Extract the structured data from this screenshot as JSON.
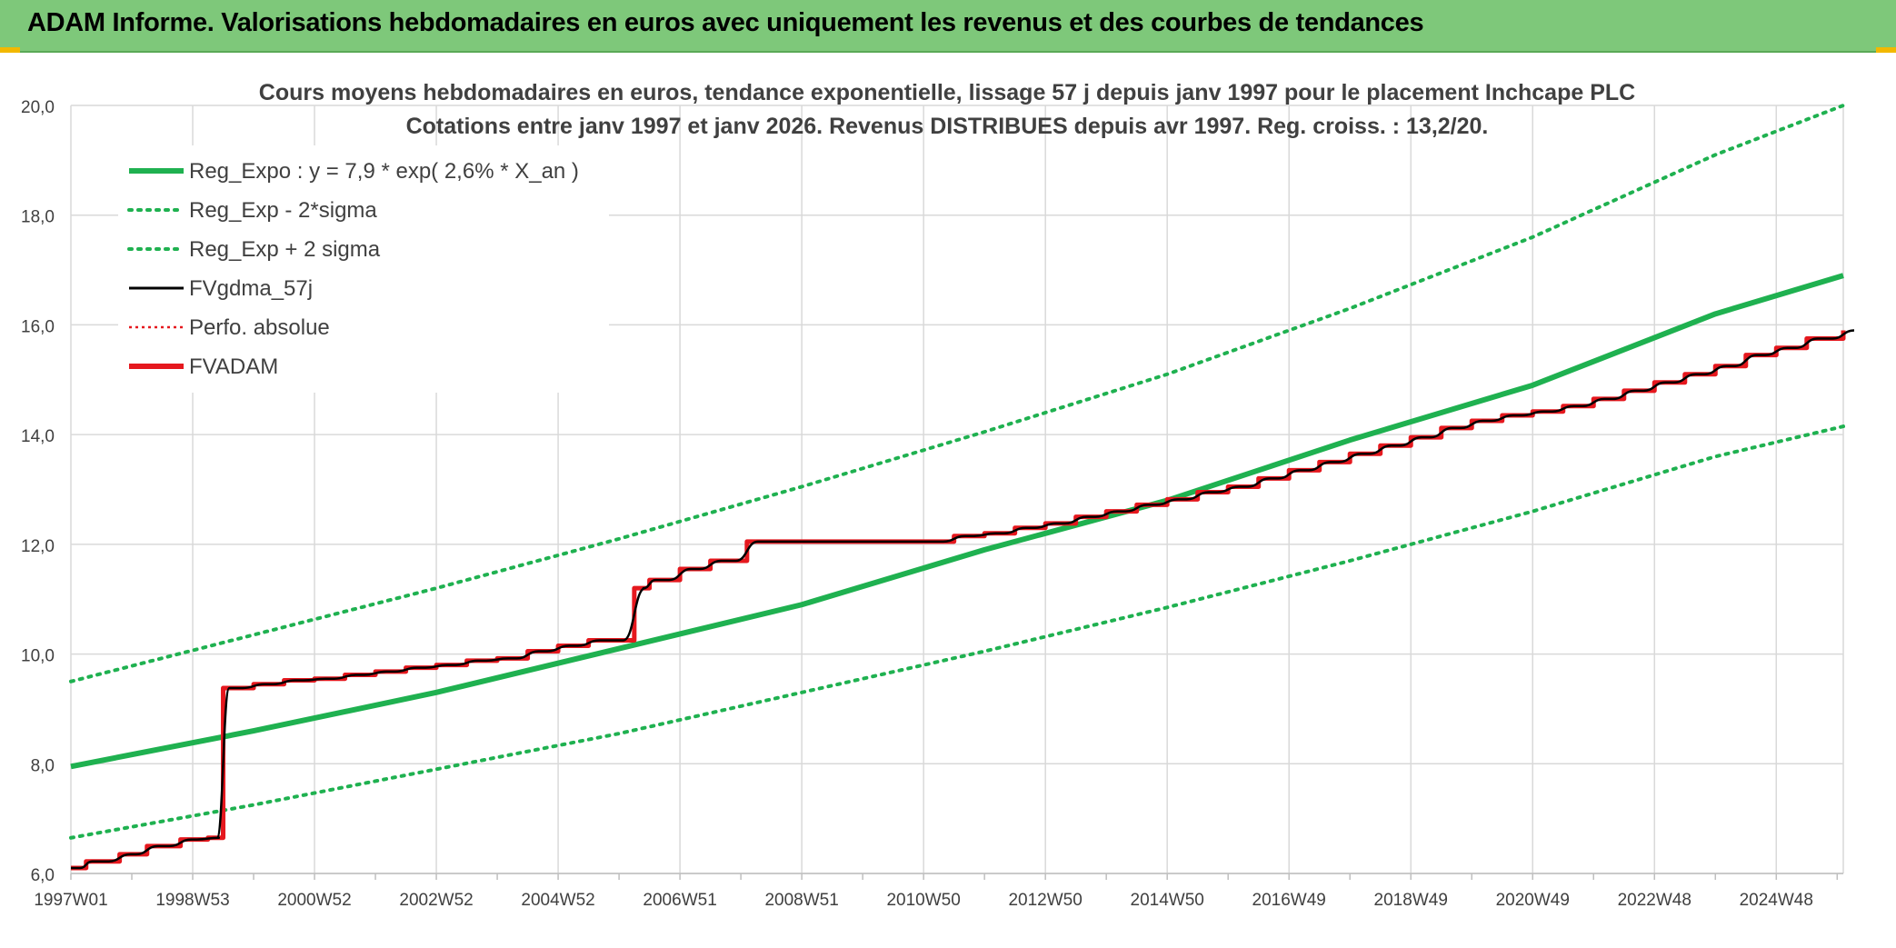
{
  "banner": {
    "title": "ADAM Informe. Valorisations hebdomadaires en euros avec uniquement les revenus et des courbes de tendances"
  },
  "colors": {
    "banner_bg": "#7ec87a",
    "trend_green": "#1fb150",
    "price_black": "#000000",
    "adam_red": "#e5181e",
    "grid": "#d9d9d9",
    "corner_accent": "#f2b800"
  },
  "chart_data": {
    "type": "line",
    "title_line1": "Cours moyens hebdomadaires en euros, tendance exponentielle, lissage 57 j depuis janv 1997 pour le placement Inchcape PLC",
    "title_line2": "Cotations entre janv 1997 et janv 2026. Revenus DISTRIBUES depuis avr 1997. Reg. croiss. : 13,2/20.",
    "x_tick_labels": [
      "1997W01",
      "1998W53",
      "2000W52",
      "2002W52",
      "2004W52",
      "2006W51",
      "2008W51",
      "2010W50",
      "2012W50",
      "2014W50",
      "2016W49",
      "2018W49",
      "2020W49",
      "2022W48",
      "2024W48"
    ],
    "x_range_years": [
      1997.0,
      2026.1
    ],
    "y_tick_labels": [
      "6,0",
      "8,0",
      "10,0",
      "12,0",
      "14,0",
      "16,0",
      "18,0",
      "20,0"
    ],
    "ylim": [
      6.0,
      20.0
    ],
    "grid": true,
    "legend_position": "top-left",
    "legend": [
      {
        "label": "Reg_Expo : y = 7,9 * exp( 2,6% *  X_an )",
        "style": "thick-solid",
        "color": "#1fb150"
      },
      {
        "label": "Reg_Exp - 2*sigma",
        "style": "dotted",
        "color": "#1fb150"
      },
      {
        "label": "Reg_Exp + 2 sigma",
        "style": "dotted",
        "color": "#1fb150"
      },
      {
        "label": "FVgdma_57j",
        "style": "solid",
        "color": "#000000"
      },
      {
        "label": "Perfo. absolue",
        "style": "dotted-thin",
        "color": "#e5181e"
      },
      {
        "label": "FVADAM",
        "style": "thick-solid",
        "color": "#e5181e"
      }
    ],
    "series": [
      {
        "name": "Reg_Expo : y = 7,9 * exp( 2,6% *  X_an )",
        "x": [
          1997.0,
          2000.0,
          2003.0,
          2006.0,
          2009.0,
          2012.0,
          2015.0,
          2018.0,
          2021.0,
          2024.0,
          2026.1
        ],
        "y": [
          7.95,
          8.6,
          9.3,
          10.1,
          10.9,
          11.9,
          12.8,
          13.9,
          14.9,
          16.2,
          16.9
        ]
      },
      {
        "name": "Reg_Exp - 2*sigma",
        "x": [
          1997.0,
          2000.0,
          2003.0,
          2006.0,
          2009.0,
          2012.0,
          2015.0,
          2018.0,
          2021.0,
          2024.0,
          2026.1
        ],
        "y": [
          6.65,
          7.25,
          7.9,
          8.55,
          9.3,
          10.05,
          10.85,
          11.7,
          12.6,
          13.6,
          14.15
        ]
      },
      {
        "name": "Reg_Exp + 2 sigma",
        "x": [
          1997.0,
          2000.0,
          2003.0,
          2006.0,
          2009.0,
          2012.0,
          2015.0,
          2018.0,
          2021.0,
          2024.0,
          2026.1
        ],
        "y": [
          9.5,
          10.35,
          11.2,
          12.1,
          13.05,
          14.05,
          15.1,
          16.3,
          17.6,
          19.1,
          20.0
        ]
      },
      {
        "name": "FVADAM",
        "x": [
          1997.0,
          1997.25,
          1997.8,
          1998.25,
          1998.8,
          1999.25,
          1999.5,
          2000.0,
          2000.5,
          2001.0,
          2001.5,
          2002.0,
          2002.5,
          2003.0,
          2003.5,
          2004.0,
          2004.5,
          2005.0,
          2005.5,
          2006.25,
          2006.5,
          2007.0,
          2007.5,
          2008.1,
          2008.5,
          2010.9,
          2011.5,
          2012.0,
          2012.5,
          2013.0,
          2013.5,
          2014.0,
          2014.5,
          2015.0,
          2015.5,
          2016.0,
          2016.5,
          2017.0,
          2017.5,
          2018.0,
          2018.5,
          2019.0,
          2019.5,
          2020.0,
          2020.5,
          2021.0,
          2021.5,
          2022.0,
          2022.5,
          2023.0,
          2023.5,
          2024.0,
          2024.5,
          2025.0,
          2025.5,
          2026.1
        ],
        "y": [
          6.1,
          6.22,
          6.35,
          6.5,
          6.62,
          6.65,
          9.38,
          9.45,
          9.52,
          9.55,
          9.62,
          9.68,
          9.75,
          9.8,
          9.88,
          9.92,
          10.05,
          10.15,
          10.25,
          11.2,
          11.35,
          11.55,
          11.7,
          12.05,
          12.05,
          12.05,
          12.15,
          12.2,
          12.3,
          12.38,
          12.5,
          12.6,
          12.72,
          12.82,
          12.95,
          13.05,
          13.2,
          13.35,
          13.5,
          13.65,
          13.8,
          13.95,
          14.12,
          14.25,
          14.35,
          14.42,
          14.52,
          14.65,
          14.8,
          14.95,
          15.1,
          15.25,
          15.45,
          15.58,
          15.75,
          15.9
        ]
      },
      {
        "name": "FVgdma_57j",
        "x": [
          1997.0,
          1997.25,
          1997.8,
          1998.25,
          1998.8,
          1999.25,
          1999.5,
          2000.0,
          2000.5,
          2001.0,
          2001.5,
          2002.0,
          2002.5,
          2003.0,
          2003.5,
          2004.0,
          2004.5,
          2005.0,
          2005.5,
          2006.25,
          2006.5,
          2007.0,
          2007.5,
          2008.1,
          2008.5,
          2010.9,
          2011.5,
          2012.0,
          2012.5,
          2013.0,
          2013.5,
          2014.0,
          2014.5,
          2015.0,
          2015.5,
          2016.0,
          2016.5,
          2017.0,
          2017.5,
          2018.0,
          2018.5,
          2019.0,
          2019.5,
          2020.0,
          2020.5,
          2021.0,
          2021.5,
          2022.0,
          2022.5,
          2023.0,
          2023.5,
          2024.0,
          2024.5,
          2025.0,
          2025.5,
          2026.1
        ],
        "y": [
          6.1,
          6.22,
          6.35,
          6.5,
          6.62,
          6.65,
          9.38,
          9.45,
          9.52,
          9.55,
          9.62,
          9.68,
          9.75,
          9.8,
          9.88,
          9.92,
          10.05,
          10.15,
          10.25,
          11.2,
          11.35,
          11.55,
          11.7,
          12.05,
          12.05,
          12.05,
          12.15,
          12.2,
          12.3,
          12.38,
          12.5,
          12.6,
          12.72,
          12.82,
          12.95,
          13.05,
          13.2,
          13.35,
          13.5,
          13.65,
          13.8,
          13.95,
          14.12,
          14.25,
          14.35,
          14.42,
          14.52,
          14.65,
          14.8,
          14.95,
          15.1,
          15.25,
          15.45,
          15.58,
          15.75,
          15.9
        ]
      }
    ]
  }
}
